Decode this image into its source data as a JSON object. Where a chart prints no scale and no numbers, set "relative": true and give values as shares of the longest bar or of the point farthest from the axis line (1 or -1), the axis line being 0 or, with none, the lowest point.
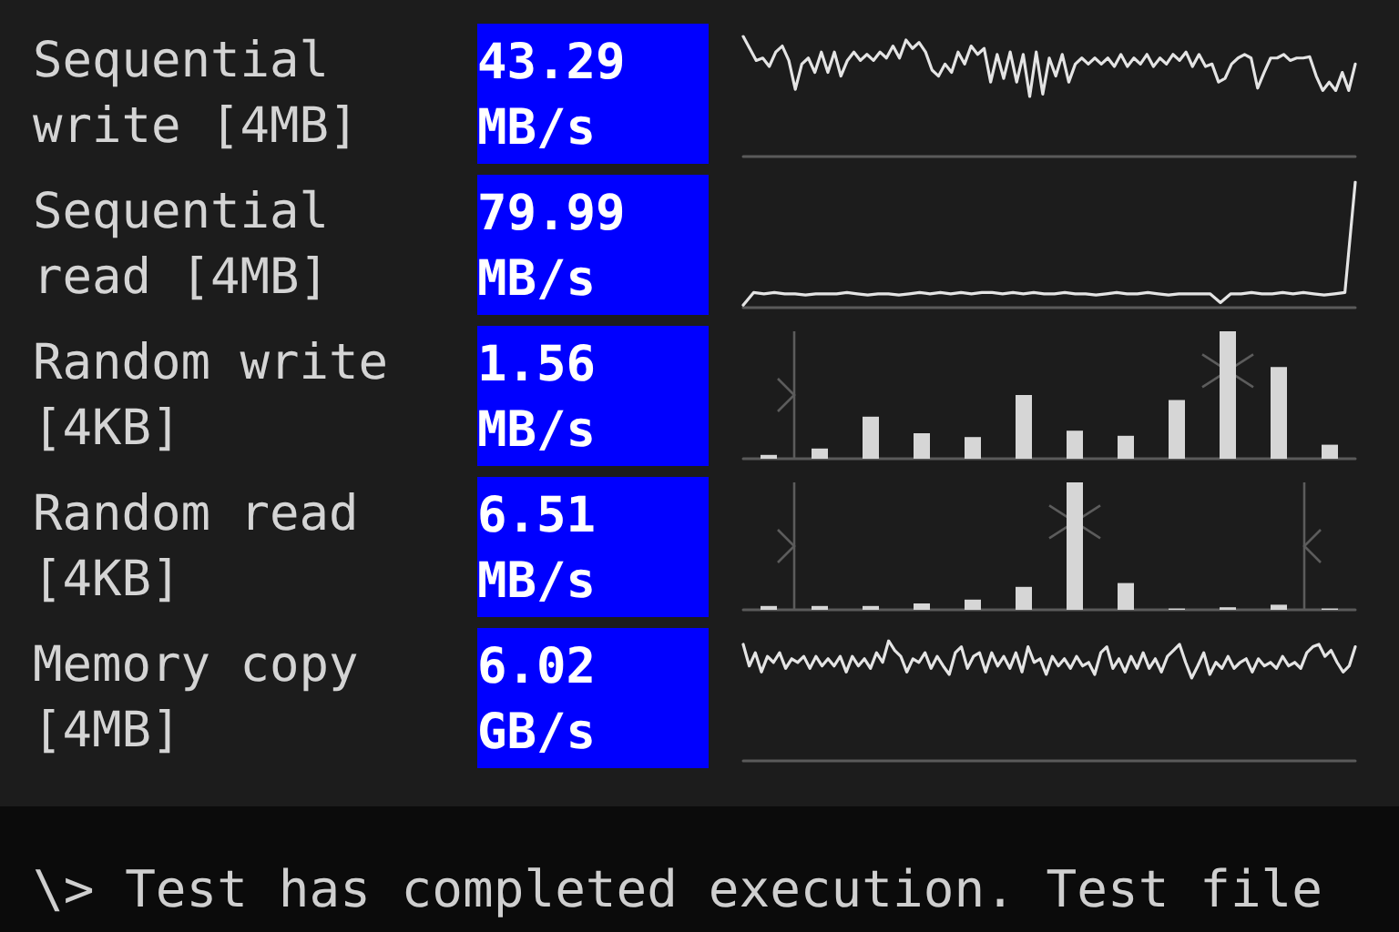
{
  "chart_data": [
    {
      "type": "other",
      "title": "Sequential write [4MB]",
      "annotations": [
        "43.29 MB/s"
      ]
    },
    {
      "type": "line",
      "relative": true,
      "color": "#e4e4e4",
      "marker": "none",
      "categories": [
        null,
        null,
        null,
        null,
        null,
        null,
        null,
        null,
        null,
        null,
        null,
        null,
        null,
        null,
        null,
        null,
        null,
        null,
        null,
        null,
        null,
        null,
        null,
        null,
        null,
        null,
        null,
        null,
        null,
        null,
        null,
        null,
        null,
        null,
        null,
        null,
        null,
        null,
        null,
        null,
        null,
        null,
        null,
        null,
        null,
        null,
        null,
        null,
        null,
        null,
        null,
        null,
        null,
        null,
        null,
        null,
        null,
        null,
        null,
        null,
        null,
        null,
        null,
        null,
        null,
        null,
        null,
        null,
        null,
        null,
        null,
        null,
        null,
        null,
        null,
        null,
        null,
        null,
        null,
        null,
        null,
        null,
        null,
        null,
        null,
        null,
        null,
        null,
        null,
        null,
        null,
        null,
        null,
        null,
        null
      ],
      "values": [
        1.0,
        0.9,
        0.8,
        0.82,
        0.75,
        0.87,
        0.92,
        0.8,
        0.56,
        0.77,
        0.82,
        0.7,
        0.87,
        0.7,
        0.87,
        0.67,
        0.8,
        0.87,
        0.8,
        0.85,
        0.8,
        0.87,
        0.82,
        0.92,
        0.82,
        0.97,
        0.9,
        0.95,
        0.87,
        0.72,
        0.67,
        0.77,
        0.7,
        0.87,
        0.77,
        0.92,
        0.85,
        0.9,
        0.62,
        0.85,
        0.65,
        0.87,
        0.62,
        0.85,
        0.5,
        0.87,
        0.52,
        0.82,
        0.67,
        0.85,
        0.62,
        0.77,
        0.82,
        0.77,
        0.82,
        0.77,
        0.82,
        0.75,
        0.85,
        0.75,
        0.82,
        0.77,
        0.85,
        0.75,
        0.82,
        0.77,
        0.85,
        0.8,
        0.87,
        0.75,
        0.85,
        0.75,
        0.77,
        0.62,
        0.65,
        0.77,
        0.82,
        0.85,
        0.82,
        0.57,
        0.7,
        0.82,
        0.82,
        0.85,
        0.8,
        0.82,
        0.82,
        0.83,
        0.67,
        0.55,
        0.62,
        0.55,
        0.7,
        0.55,
        0.77
      ]
    },
    {
      "type": "other",
      "title": "Sequential read [4MB]",
      "annotations": [
        "79.99 MB/s"
      ]
    },
    {
      "type": "line",
      "relative": true,
      "color": "#e4e4e4",
      "marker": "none",
      "categories": [
        null,
        null,
        null,
        null,
        null,
        null,
        null,
        null,
        null,
        null,
        null,
        null,
        null,
        null,
        null,
        null,
        null,
        null,
        null,
        null,
        null,
        null,
        null,
        null,
        null,
        null,
        null,
        null,
        null,
        null,
        null,
        null,
        null,
        null,
        null,
        null,
        null,
        null,
        null,
        null,
        null,
        null,
        null,
        null,
        null,
        null,
        null,
        null,
        null,
        null,
        null,
        null,
        null,
        null,
        null,
        null,
        null,
        null,
        null,
        null
      ],
      "values": [
        0.02,
        0.12,
        0.11,
        0.12,
        0.11,
        0.11,
        0.1,
        0.11,
        0.11,
        0.11,
        0.12,
        0.11,
        0.1,
        0.11,
        0.11,
        0.1,
        0.11,
        0.12,
        0.11,
        0.12,
        0.11,
        0.12,
        0.11,
        0.12,
        0.12,
        0.11,
        0.12,
        0.11,
        0.12,
        0.11,
        0.11,
        0.12,
        0.11,
        0.11,
        0.1,
        0.11,
        0.12,
        0.11,
        0.11,
        0.12,
        0.11,
        0.1,
        0.11,
        0.11,
        0.11,
        0.11,
        0.04,
        0.11,
        0.11,
        0.12,
        0.11,
        0.11,
        0.12,
        0.11,
        0.12,
        0.11,
        0.1,
        0.11,
        0.12,
        1.0
      ]
    },
    {
      "type": "other",
      "title": "Random write [4KB]",
      "annotations": [
        "1.56 MB/s"
      ]
    },
    {
      "type": "bar",
      "relative": true,
      "color": "#d6d6d6",
      "categories": [
        null,
        null,
        null,
        null,
        null,
        null,
        null,
        null,
        null,
        null,
        null,
        null
      ],
      "values": [
        0.03,
        0.08,
        0.33,
        0.2,
        0.17,
        0.5,
        0.22,
        0.18,
        0.46,
        1.0,
        0.72,
        0.11
      ]
    },
    {
      "type": "other",
      "title": "Random read [4KB]",
      "annotations": [
        "6.51 MB/s"
      ]
    },
    {
      "type": "bar",
      "relative": true,
      "color": "#d6d6d6",
      "categories": [
        null,
        null,
        null,
        null,
        null,
        null,
        null,
        null,
        null,
        null,
        null,
        null
      ],
      "values": [
        0.03,
        0.03,
        0.03,
        0.05,
        0.08,
        0.18,
        1.0,
        0.21,
        0.01,
        0.02,
        0.04,
        0.01
      ]
    },
    {
      "type": "other",
      "title": "Memory copy [4MB]",
      "annotations": [
        "6.02 GB/s"
      ]
    },
    {
      "type": "line",
      "relative": true,
      "color": "#e4e4e4",
      "marker": "none",
      "categories": [
        null,
        null,
        null,
        null,
        null,
        null,
        null,
        null,
        null,
        null,
        null,
        null,
        null,
        null,
        null,
        null,
        null,
        null,
        null,
        null,
        null,
        null,
        null,
        null,
        null,
        null,
        null,
        null,
        null,
        null,
        null,
        null,
        null,
        null,
        null,
        null,
        null,
        null,
        null,
        null,
        null,
        null,
        null,
        null,
        null,
        null,
        null,
        null,
        null,
        null,
        null,
        null,
        null,
        null,
        null,
        null,
        null,
        null,
        null,
        null,
        null,
        null,
        null,
        null,
        null,
        null,
        null,
        null,
        null,
        null,
        null,
        null,
        null,
        null,
        null,
        null,
        null,
        null,
        null,
        null,
        null,
        null,
        null,
        null,
        null,
        null,
        null,
        null,
        null,
        null,
        null,
        null,
        null,
        null,
        null,
        null,
        null,
        null,
        null,
        null,
        null,
        null
      ],
      "values": [
        0.97,
        0.79,
        0.9,
        0.74,
        0.87,
        0.82,
        0.9,
        0.77,
        0.85,
        0.82,
        0.87,
        0.77,
        0.87,
        0.79,
        0.85,
        0.79,
        0.87,
        0.74,
        0.87,
        0.79,
        0.85,
        0.77,
        0.9,
        0.82,
        1.0,
        0.92,
        0.87,
        0.74,
        0.85,
        0.82,
        0.9,
        0.77,
        0.87,
        0.79,
        0.72,
        0.9,
        0.95,
        0.77,
        0.87,
        0.9,
        0.74,
        0.9,
        0.79,
        0.87,
        0.77,
        0.9,
        0.74,
        0.95,
        0.82,
        0.85,
        0.72,
        0.87,
        0.79,
        0.85,
        0.77,
        0.87,
        0.79,
        0.82,
        0.72,
        0.9,
        0.95,
        0.77,
        0.85,
        0.74,
        0.87,
        0.77,
        0.9,
        0.77,
        0.85,
        0.74,
        0.87,
        0.92,
        0.97,
        0.82,
        0.69,
        0.79,
        0.9,
        0.72,
        0.82,
        0.77,
        0.87,
        0.77,
        0.82,
        0.85,
        0.74,
        0.85,
        0.79,
        0.82,
        0.77,
        0.87,
        0.79,
        0.82,
        0.77,
        0.9,
        0.95,
        0.97,
        0.87,
        0.92,
        0.82,
        0.74,
        0.79,
        0.95
      ]
    },
    {
      "type": "other",
      "annotations": [
        "\\> Test has completed execution. Test file"
      ]
    }
  ]
}
